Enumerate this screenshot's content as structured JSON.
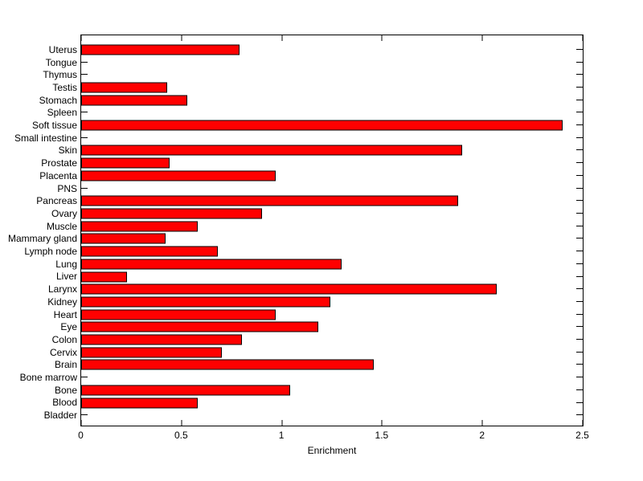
{
  "figure": {
    "background_color": "#ffffff",
    "axis_color": "#000000"
  },
  "chart_data": {
    "type": "bar",
    "orientation": "horizontal",
    "title": "",
    "xlabel": "Enrichment",
    "ylabel": "",
    "grid": false,
    "legend": null,
    "xlim": [
      0,
      2.5
    ],
    "xtick_values": [
      0,
      0.5,
      1,
      1.5,
      2,
      2.5
    ],
    "xtick_labels": [
      "0",
      "0.5",
      "1",
      "1.5",
      "2",
      "2.5"
    ],
    "bar_color": "#ff0000",
    "bar_edge_color": "#000000",
    "categories": [
      "Uterus",
      "Tongue",
      "Thymus",
      "Testis",
      "Stomach",
      "Spleen",
      "Soft tissue",
      "Small intestine",
      "Skin",
      "Prostate",
      "Placenta",
      "PNS",
      "Pancreas",
      "Ovary",
      "Muscle",
      "Mammary gland",
      "Lymph node",
      "Lung",
      "Liver",
      "Larynx",
      "Kidney",
      "Heart",
      "Eye",
      "Colon",
      "Cervix",
      "Brain",
      "Bone marrow",
      "Bone",
      "Blood",
      "Bladder"
    ],
    "values": [
      0.79,
      0,
      0,
      0.43,
      0.53,
      0,
      2.4,
      0,
      1.9,
      0.44,
      0.97,
      0,
      1.88,
      0.9,
      0.58,
      0.42,
      0.68,
      1.3,
      0.23,
      2.07,
      1.24,
      0.97,
      1.18,
      0.8,
      0.7,
      1.46,
      0,
      1.04,
      0.58,
      0
    ]
  }
}
